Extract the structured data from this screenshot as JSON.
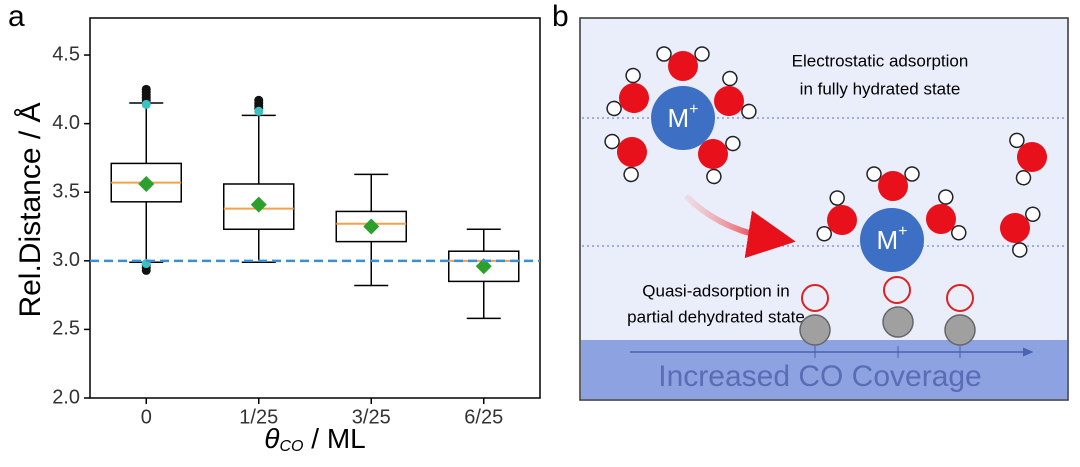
{
  "chart_data": {
    "type": "box",
    "ylabel": "Rel.Distance / Å",
    "xlabel": {
      "symbol": "θ",
      "subscript": "CO",
      "unit": " / ML"
    },
    "categories": [
      "0",
      "1/25",
      "3/25",
      "6/25"
    ],
    "boxes": [
      {
        "low": 2.99,
        "q1": 3.43,
        "median": 3.57,
        "q3": 3.71,
        "high": 4.15,
        "mean": 3.56,
        "outliers": [
          4.17,
          4.19,
          4.21,
          4.23,
          4.25,
          2.97,
          2.95,
          2.93
        ],
        "highlight": [
          4.14,
          2.98
        ]
      },
      {
        "low": 2.99,
        "q1": 3.23,
        "median": 3.38,
        "q3": 3.56,
        "high": 4.06,
        "mean": 3.41,
        "outliers": [
          4.11,
          4.13,
          4.15,
          4.17
        ],
        "highlight": [
          4.09
        ]
      },
      {
        "low": 2.82,
        "q1": 3.14,
        "median": 3.27,
        "q3": 3.36,
        "high": 3.63,
        "mean": 3.25,
        "outliers": [],
        "highlight": []
      },
      {
        "low": 2.58,
        "q1": 2.85,
        "median": 3.0,
        "q3": 3.07,
        "high": 3.23,
        "mean": 2.96,
        "outliers": [],
        "highlight": []
      }
    ],
    "reference_line": 3.0,
    "colors": {
      "box": "#000000",
      "median": "#f5a04a",
      "mean": "#2ca02c",
      "reference": "#3b8fd0",
      "highlight": "#3cc0c0"
    },
    "ylim": [
      2.0,
      4.77
    ],
    "yticks": [
      {
        "value": 2,
        "label": "2.0"
      },
      2.5,
      {
        "value": 3,
        "label": "3.0"
      },
      3.5,
      {
        "value": 4,
        "label": "4.0"
      },
      4.5
    ]
  },
  "panel_labels": [
    "a",
    "b"
  ],
  "diagram": {
    "top_text": [
      "Electrostatic adsorption",
      "in fully hydrated state"
    ],
    "ion": {
      "symbol": "M",
      "charge": "+"
    },
    "bottom_text": [
      "Quasi-adsorption in",
      "partial dehydrated state"
    ],
    "coverage_label": "Increased CO Coverage"
  }
}
